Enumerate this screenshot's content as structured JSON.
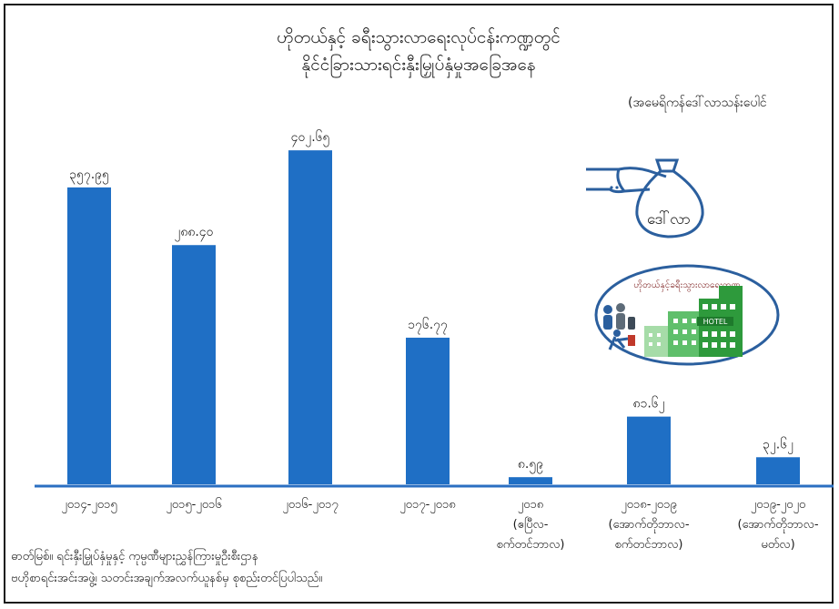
{
  "chart_data": {
    "type": "bar",
    "title": "ဟိုတယ်နှင့် ခရီးသွားလာရေးလုပ်ငန်းကဏ္ဍတွင်",
    "subtitle": "နိုင်ငံခြားသားရင်းနှီးမြှုပ်နှံမှုအခြေအနေ",
    "unit_label": "(အမေရိကန်ဒေါ်လာသန်းပေါင်",
    "categories": [
      [
        "၂၀၁၄-၂၀၁၅"
      ],
      [
        "၂၀၁၅-၂၀၁၆"
      ],
      [
        "၂၀၁၆-၂၀၁၇"
      ],
      [
        "၂၀၁၇-၂၀၁၈"
      ],
      [
        "၂၀၁၈",
        "(ဧပြီလ-",
        "စက်တင်ဘာလ)"
      ],
      [
        "၂၀၁၈-၂၀၁၉",
        "(အောက်တိုဘာလ-",
        "စက်တင်ဘာလ)"
      ],
      [
        "၂၀၁၉-၂၀၂၀",
        "(အောက်တိုဘာလ-",
        "မတ်လ)"
      ]
    ],
    "values": [
      357.95,
      288.4,
      402.65,
      176.77,
      8.59,
      81.62,
      32.62
    ],
    "value_labels": [
      "၃၅၇.၉၅",
      "၂၈၈.၄၀",
      "၄၀၂.၆၅",
      "၁၇၆.၇၇",
      "၈.၅၉",
      "၈၁.၆၂",
      "၃၂.၆၂"
    ],
    "ylim": [
      0,
      450
    ],
    "bar_color": "#1f6fc5",
    "grid": false,
    "legend": "none"
  },
  "note": {
    "line1": "ဓာတ်မြစ်။ ရင်းနှီးမြှုပ်နှံမှုနှင့် ကုမ္ပဏီများညွှန်ကြားမှုဦးစီးဌာန",
    "line2": "ဗဟိုစာရင်းအင်းအဖွဲ့၊ သတင်းအချက်အလက်ယူနစ်မှ စုစည်းတင်ပြပါသည်။"
  },
  "badge": {
    "label": "ဒေါ်လာ",
    "circle_label": "ဟိုတယ်နှင့်ခရီးသွားလာရေးကဏ္ဍ",
    "hotel_sign": "HOTEL",
    "icons": [
      "hand-money-bag-icon",
      "tourists-icon",
      "hotel-building-icon"
    ],
    "accent_color": "#2b5f9e",
    "green_color": "#2e9a3c"
  }
}
